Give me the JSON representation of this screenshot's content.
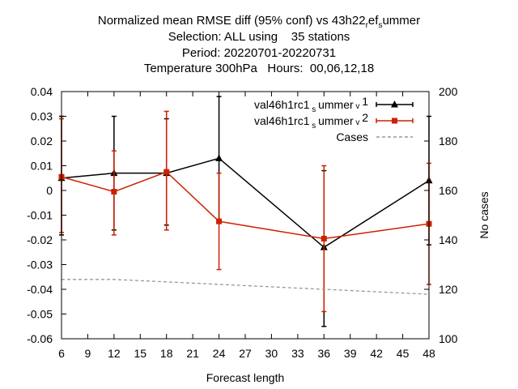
{
  "titles": {
    "line1": "Normalized mean RMSE diff (95% conf) vs 43h22_ref_summer",
    "line2": "Selection: ALL using    35 stations",
    "line3": "Period: 20220701-20220731",
    "line4": "Temperature 300hPa   Hours:  00,06,12,18"
  },
  "chart_data": {
    "type": "line",
    "xlabel": "Forecast length",
    "ylabel_right": "No cases",
    "xlim": [
      6,
      48
    ],
    "ylim": [
      -0.06,
      0.04
    ],
    "y2lim": [
      100,
      200
    ],
    "x_ticks": [
      "6",
      "9",
      "12",
      "15",
      "18",
      "21",
      "24",
      "27",
      "30",
      "33",
      "36",
      "39",
      "42",
      "45",
      "48"
    ],
    "y_ticks": [
      "0.04",
      "0.03",
      "0.02",
      "0.01",
      "0",
      "-0.01",
      "-0.02",
      "-0.03",
      "-0.04",
      "-0.05",
      "-0.06"
    ],
    "y2_ticks": [
      "200",
      "180",
      "160",
      "140",
      "120",
      "100"
    ],
    "legend_position": "top-right",
    "series": [
      {
        "name": "val46h1rc1_summer_v1",
        "color": "#000000",
        "marker": "triangle",
        "x": [
          6,
          12,
          18,
          24,
          36,
          48
        ],
        "y": [
          0.005,
          0.007,
          0.007,
          0.013,
          -0.023,
          0.004
        ],
        "err_low": [
          -0.018,
          -0.016,
          -0.014,
          -0.013,
          -0.055,
          -0.022
        ],
        "err_high": [
          0.03,
          0.03,
          0.029,
          0.038,
          0.008,
          0.03
        ]
      },
      {
        "name": "val46h1rc1_summer_v2",
        "color": "#cc2200",
        "marker": "square",
        "x": [
          6,
          12,
          18,
          24,
          36,
          48
        ],
        "y": [
          0.0055,
          -0.0005,
          0.0075,
          -0.0125,
          -0.0195,
          -0.0135
        ],
        "err_low": [
          -0.017,
          -0.018,
          -0.016,
          -0.032,
          -0.049,
          -0.038
        ],
        "err_high": [
          0.029,
          0.016,
          0.032,
          0.007,
          0.01,
          0.011
        ]
      },
      {
        "name": "Cases",
        "color": "#999999",
        "dashed": true,
        "axis": "right",
        "x": [
          6,
          12,
          18,
          24,
          36,
          48
        ],
        "y": [
          124,
          124,
          123,
          122,
          120,
          118
        ]
      }
    ]
  }
}
